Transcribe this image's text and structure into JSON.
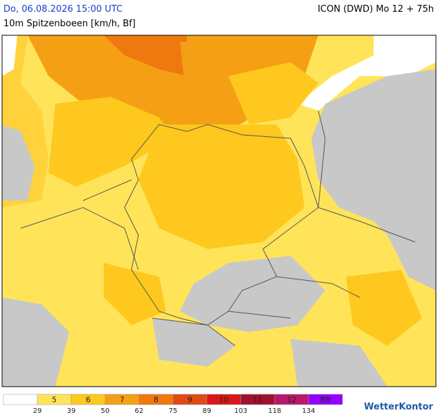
{
  "header": {
    "valid_time": "Do, 06.08.2026 15:00 UTC",
    "model": "ICON (DWD) Mo 12 + 75h",
    "subtitle": "10m Spitzenboeen [km/h, Bf]"
  },
  "legend": {
    "colors": [
      "#ffffff",
      "#ffe45a",
      "#ffc81e",
      "#f5a014",
      "#ef780f",
      "#e04a14",
      "#d81818",
      "#a01030",
      "#b8186a",
      "#9400ff"
    ],
    "bf_labels": [
      "5",
      "6",
      "7",
      "8",
      "9",
      "10",
      "11",
      "12",
      "Bft"
    ],
    "kmh_labels": [
      "29",
      "39",
      "50",
      "62",
      "75",
      "89",
      "103",
      "118",
      "134"
    ]
  },
  "logo": "WetterKontor"
}
